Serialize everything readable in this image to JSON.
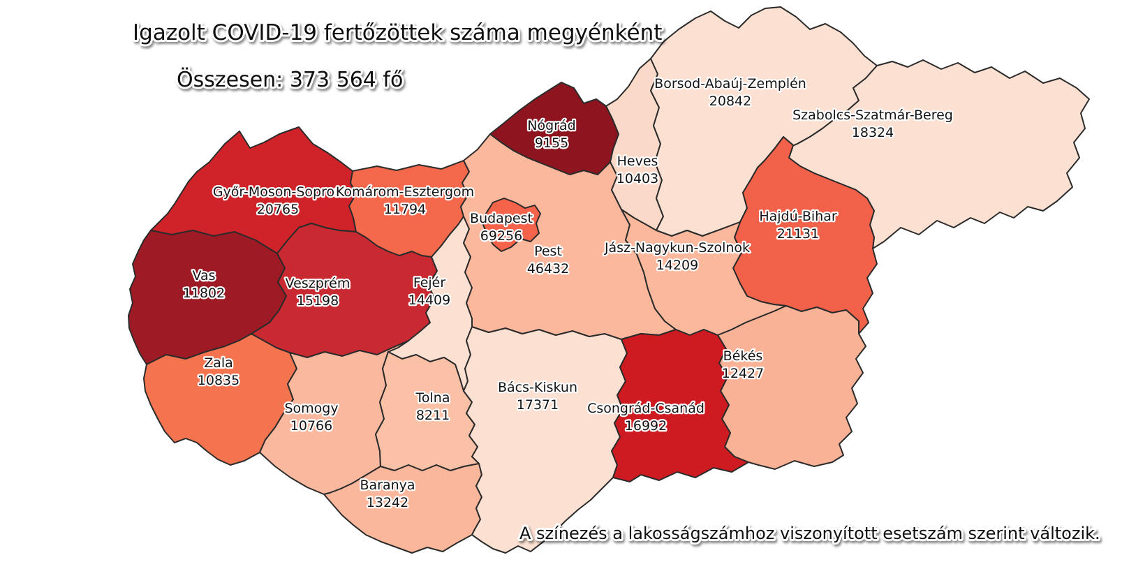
{
  "title": "Igazolt COVID-19 fertőzöttek száma megyénként",
  "subtitle": "Összesen: 373 564 fő",
  "footnote": "A színezés a lakosságszámhoz viszonyított esetszám szerint változik.",
  "map": {
    "background_color": "#ffffff",
    "border_color": "#2b2b2b",
    "label_color": "#141414",
    "halo_color": "#ffffff"
  },
  "counties": [
    {
      "id": "gyor-moson-sopron",
      "name": "Győr-Moson-Sopron",
      "value": "20765",
      "color": "#D02329"
    },
    {
      "id": "komarom-esztergom",
      "name": "Komárom-Esztergom",
      "value": "11794",
      "color": "#F4694C"
    },
    {
      "id": "vas",
      "name": "Vas",
      "value": "11802",
      "color": "#9E1B26"
    },
    {
      "id": "veszprem",
      "name": "Veszprém",
      "value": "15198",
      "color": "#C92930"
    },
    {
      "id": "zala",
      "name": "Zala",
      "value": "10835",
      "color": "#F4744F"
    },
    {
      "id": "fejer",
      "name": "Fejér",
      "value": "14409",
      "color": "#FCE1D3"
    },
    {
      "id": "somogy",
      "name": "Somogy",
      "value": "10766",
      "color": "#FAB99E"
    },
    {
      "id": "tolna",
      "name": "Tolna",
      "value": "8211",
      "color": "#FBC1A7"
    },
    {
      "id": "baranya",
      "name": "Baranya",
      "value": "13242",
      "color": "#FAB79B"
    },
    {
      "id": "pest",
      "name": "Pest",
      "value": "46432",
      "color": "#FBB89D"
    },
    {
      "id": "budapest",
      "name": "Budapest",
      "value": "69256",
      "color": "#F4634A"
    },
    {
      "id": "bacs-kiskun",
      "name": "Bács-Kiskun",
      "value": "17371",
      "color": "#FCE0D2"
    },
    {
      "id": "nograd",
      "name": "Nógrád",
      "value": "9155",
      "color": "#8E1420"
    },
    {
      "id": "heves",
      "name": "Heves",
      "value": "10403",
      "color": "#FBD9C9"
    },
    {
      "id": "borsod-abauj-zemplen",
      "name": "Borsod-Abaúj-Zemplén",
      "value": "20842",
      "color": "#FCE0D2"
    },
    {
      "id": "szabolcs-szatmar-bereg",
      "name": "Szabolcs-Szatmár-Bereg",
      "value": "18324",
      "color": "#FCE0D2"
    },
    {
      "id": "hajdu-bihar",
      "name": "Hajdú-Bihar",
      "value": "21131",
      "color": "#F26149"
    },
    {
      "id": "jasz-nagykun-szolnok",
      "name": "Jász-Nagykun-Szolnok",
      "value": "14209",
      "color": "#FBB89D"
    },
    {
      "id": "bekes",
      "name": "Békés",
      "value": "12427",
      "color": "#F9B295"
    },
    {
      "id": "csongrad-csanad",
      "name": "Csongrád-Csanád",
      "value": "16992",
      "color": "#CE1B21"
    }
  ]
}
